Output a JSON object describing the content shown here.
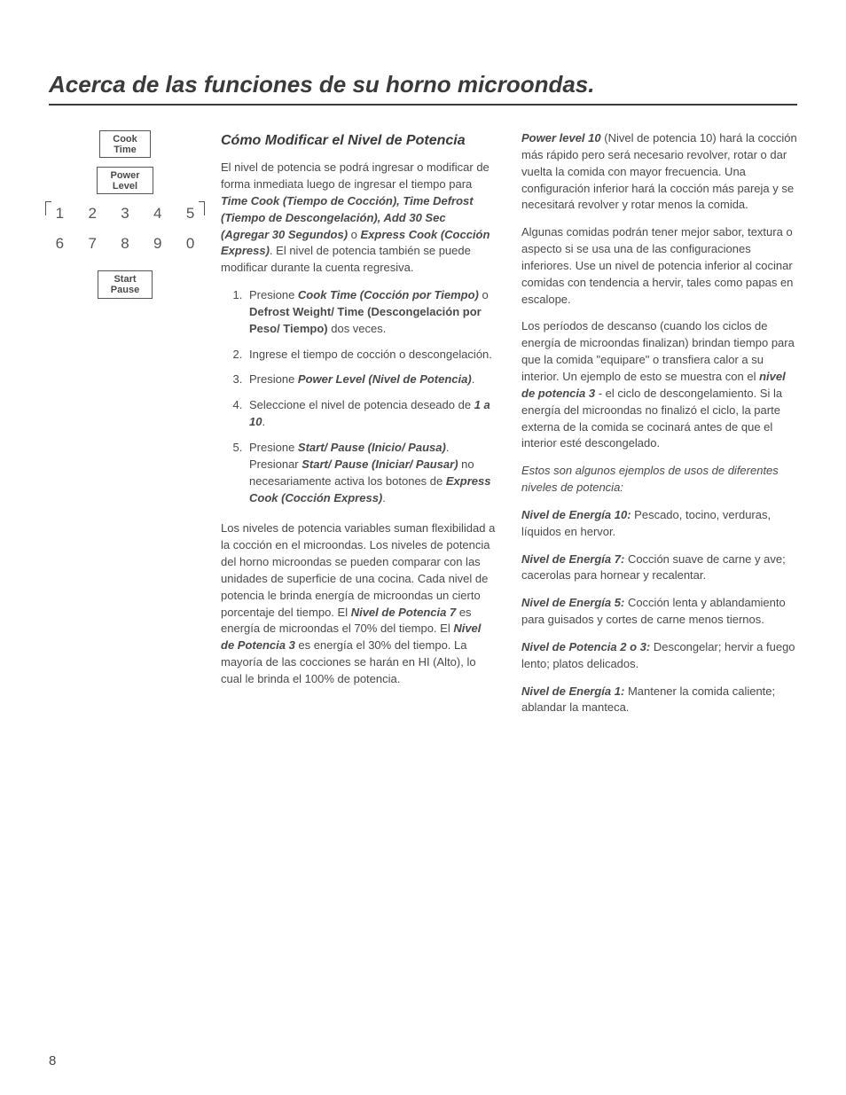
{
  "title": "Acerca de las funciones de su horno microondas.",
  "keypad": {
    "cook_time": "Cook\nTime",
    "power_level": "Power\nLevel",
    "start_pause": "Start\nPause",
    "nums": [
      "1",
      "2",
      "3",
      "4",
      "5",
      "6",
      "7",
      "8",
      "9",
      "0"
    ]
  },
  "section_title": "Cómo Modificar el Nivel de Potencia",
  "intro_1": "El nivel de potencia se podrá ingresar o modificar de forma inmediata luego de ingresar el tiempo para ",
  "intro_b1": "Time Cook (Tiempo de Cocción), Time Defrost (Tiempo de Descongelación), Add 30 Sec (Agregar 30 Segundos)",
  "intro_2": " o ",
  "intro_b2": "Express Cook (Cocción Express)",
  "intro_3": ". El nivel de potencia también se puede modificar durante la cuenta regresiva.",
  "step1_a": "Presione ",
  "step1_b1": "Cook Time (Cocción por Tiempo)",
  "step1_b": " o ",
  "step1_b2": "Defrost Weight/ Time (Descongelación por Peso/ Tiempo)",
  "step1_c": " dos veces.",
  "step2": "Ingrese el tiempo de cocción o descongelación.",
  "step3_a": "Presione ",
  "step3_b": "Power Level (Nivel de Potencia)",
  "step3_c": ".",
  "step4_a": "Seleccione el nivel de potencia deseado de ",
  "step4_b": "1 a 10",
  "step4_c": ".",
  "step5_a": "Presione ",
  "step5_b1": "Start/ Pause (Inicio/ Pausa)",
  "step5_b": ". Presionar ",
  "step5_b2": "Start/ Pause (Iniciar/ Pausar)",
  "step5_c": " no necesariamente activa los botones de ",
  "step5_b3": "Express Cook (Cocción Express)",
  "step5_d": ".",
  "p2_a": "Los niveles de potencia variables suman flexibilidad a la cocción en el microondas. Los niveles de potencia del horno microondas se pueden comparar con las unidades de superficie de una cocina. Cada nivel de potencia le brinda energía de microondas un cierto porcentaje del tiempo. El ",
  "p2_b1": "Nivel de Potencia 7",
  "p2_b": " es energía de microondas el 70% del tiempo. El ",
  "p2_b2": "Nivel de Potencia 3",
  "p2_c": " es energía el 30% del tiempo. La mayoría de las cocciones se harán en HI (Alto), lo cual le brinda el 100% de potencia.",
  "p3_b": "Power level 10",
  "p3_a": " (Nivel de potencia 10) hará la cocción más rápido pero será necesario revolver, rotar o dar vuelta la comida con mayor frecuencia. Una configuración inferior hará la cocción más pareja y se necesitará revolver y rotar menos la comida.",
  "p4": "Algunas comidas podrán tener mejor sabor, textura o aspecto si se usa una de las configuraciones inferiores. Use un nivel de potencia inferior al cocinar comidas con tendencia a hervir, tales como papas en escalope.",
  "p5_a": "Los períodos de descanso (cuando los ciclos de energía de microondas finalizan) brindan tiempo para que la comida \"equipare\" o transfiera calor a su interior. Un ejemplo de esto se muestra con el ",
  "p5_b": "nivel de potencia 3",
  "p5_c": " - el ciclo de descongelamiento. Si la energía del microondas no finalizó el ciclo, la parte externa de la comida se cocinará antes de que el interior esté descongelado.",
  "p6": "Estos son algunos ejemplos de usos de diferentes niveles de potencia:",
  "lv10_t": "Nivel de Energía 10:",
  "lv10": " Pescado, tocino, verduras, líquidos en hervor.",
  "lv7_t": "Nivel de Energía 7:",
  "lv7": " Cocción suave de carne y ave; cacerolas para hornear y recalentar.",
  "lv5_t": "Nivel de Energía 5:",
  "lv5": " Cocción lenta y ablandamiento para guisados y cortes de carne menos tiernos.",
  "lv23_t": "Nivel de Potencia 2 o 3:",
  "lv23": " Descongelar; hervir a fuego lento; platos delicados.",
  "lv1_t": "Nivel de Energía 1:",
  "lv1": " Mantener la comida caliente; ablandar la manteca.",
  "page_num": "8"
}
